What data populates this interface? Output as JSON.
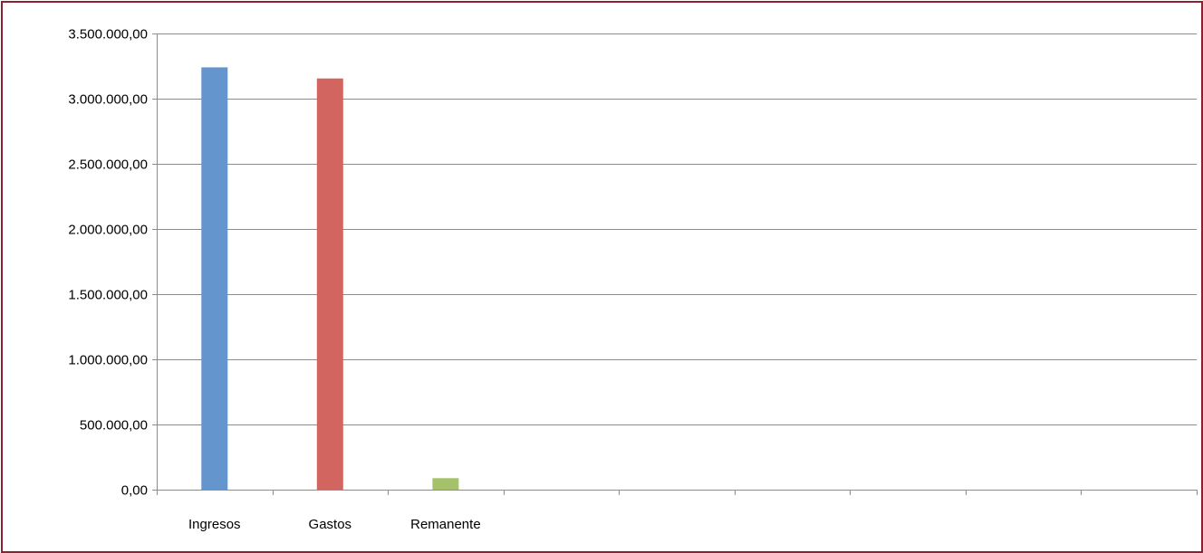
{
  "chart_data": {
    "type": "bar",
    "title": "",
    "xlabel": "",
    "ylabel": "",
    "categories": [
      "Ingresos",
      "Gastos",
      "Remanente",
      "",
      "",
      "",
      "",
      "",
      ""
    ],
    "values": [
      3240000,
      3155000,
      88000,
      null,
      null,
      null,
      null,
      null,
      null
    ],
    "bar_colors": [
      "#6495cc",
      "#d2655f",
      "#a5c16a"
    ],
    "ylim": [
      0,
      3500000
    ],
    "yticks": [
      0,
      500000,
      1000000,
      1500000,
      2000000,
      2500000,
      3000000,
      3500000
    ],
    "ytick_labels": [
      "0,00",
      "500.000,00",
      "1.000.000,00",
      "1.500.000,00",
      "2.000.000,00",
      "2.500.000,00",
      "3.000.000,00",
      "3.500.000,00"
    ],
    "grid": true,
    "gridline_color": "#8c8c8c",
    "axis_color": "#8c8c8c",
    "frame_color": "#8b2232",
    "legend": "none"
  }
}
